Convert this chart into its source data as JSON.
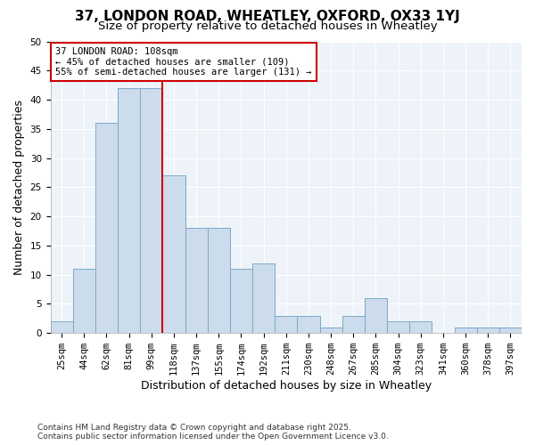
{
  "title1": "37, LONDON ROAD, WHEATLEY, OXFORD, OX33 1YJ",
  "title2": "Size of property relative to detached houses in Wheatley",
  "xlabel": "Distribution of detached houses by size in Wheatley",
  "ylabel": "Number of detached properties",
  "bar_labels": [
    "25sqm",
    "44sqm",
    "62sqm",
    "81sqm",
    "99sqm",
    "118sqm",
    "137sqm",
    "155sqm",
    "174sqm",
    "192sqm",
    "211sqm",
    "230sqm",
    "248sqm",
    "267sqm",
    "285sqm",
    "304sqm",
    "323sqm",
    "341sqm",
    "360sqm",
    "378sqm",
    "397sqm"
  ],
  "bar_values": [
    2,
    11,
    36,
    42,
    42,
    27,
    18,
    18,
    11,
    12,
    3,
    3,
    1,
    3,
    6,
    2,
    2,
    0,
    1,
    1,
    1
  ],
  "bar_color": "#cddcec",
  "bar_edge_color": "#7aaac8",
  "background_color": "#ffffff",
  "plot_bg_color": "#eef3f9",
  "grid_color": "#ffffff",
  "vline_x_index": 5,
  "vline_color": "#cc0000",
  "annotation_title": "37 LONDON ROAD: 108sqm",
  "annotation_line1": "← 45% of detached houses are smaller (109)",
  "annotation_line2": "55% of semi-detached houses are larger (131) →",
  "annotation_box_color": "#ffffff",
  "annotation_box_edgecolor": "#cc0000",
  "ylim": [
    0,
    50
  ],
  "yticks": [
    0,
    5,
    10,
    15,
    20,
    25,
    30,
    35,
    40,
    45,
    50
  ],
  "footer": "Contains HM Land Registry data © Crown copyright and database right 2025.\nContains public sector information licensed under the Open Government Licence v3.0.",
  "title_fontsize": 11,
  "subtitle_fontsize": 9.5,
  "tick_fontsize": 7.5,
  "label_fontsize": 9,
  "annotation_fontsize": 7.5,
  "footer_fontsize": 6.5
}
